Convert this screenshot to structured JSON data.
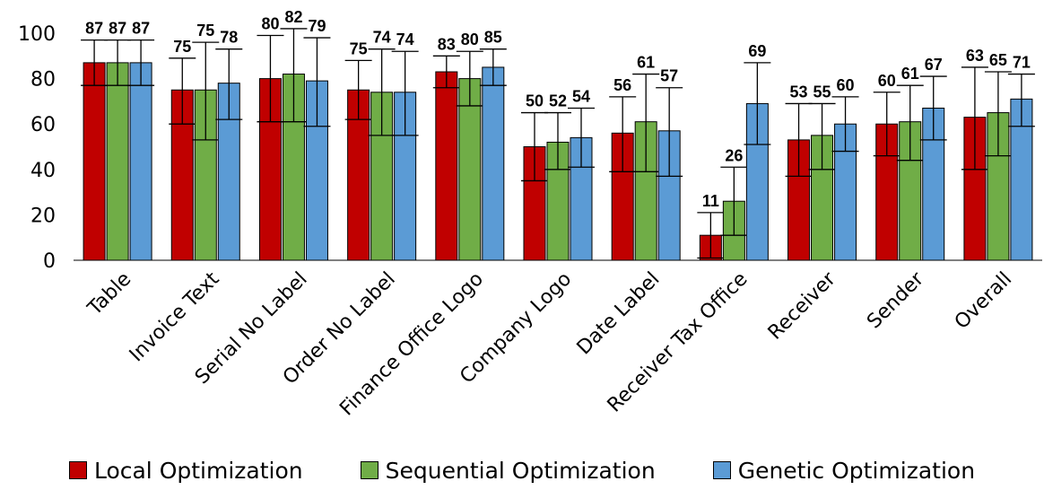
{
  "chart_data": {
    "type": "bar",
    "title": "",
    "xlabel": "",
    "ylabel": "",
    "ylim": [
      0,
      100
    ],
    "yticks": [
      0,
      20,
      40,
      60,
      80,
      100
    ],
    "grid": false,
    "error_bars": true,
    "legend_position": "bottom",
    "categories": [
      "Table",
      "Invoice Text",
      "Serial No Label",
      "Order No Label",
      "Finance Office Logo",
      "Company Logo",
      "Date Label",
      "Receiver Tax Office",
      "Receiver",
      "Sender",
      "Overall"
    ],
    "series": [
      {
        "name": "Local Optimization",
        "color": "#c00000",
        "values": [
          87,
          75,
          80,
          75,
          83,
          50,
          56,
          11,
          53,
          60,
          63
        ],
        "error_low": [
          77,
          60,
          61,
          62,
          76,
          35,
          39,
          1,
          37,
          46,
          40
        ],
        "error_high": [
          97,
          89,
          99,
          88,
          90,
          65,
          72,
          21,
          69,
          74,
          85
        ]
      },
      {
        "name": "Sequential Optimization",
        "color": "#70ad47",
        "values": [
          87,
          75,
          82,
          74,
          80,
          52,
          61,
          26,
          55,
          61,
          65
        ],
        "error_low": [
          77,
          53,
          61,
          55,
          68,
          40,
          39,
          11,
          40,
          44,
          46
        ],
        "error_high": [
          97,
          96,
          102,
          93,
          92,
          65,
          82,
          41,
          69,
          77,
          83
        ]
      },
      {
        "name": "Genetic Optimization",
        "color": "#5b9bd5",
        "values": [
          87,
          78,
          79,
          74,
          85,
          54,
          57,
          69,
          60,
          67,
          71
        ],
        "error_low": [
          77,
          62,
          59,
          55,
          77,
          41,
          37,
          51,
          48,
          53,
          59
        ],
        "error_high": [
          97,
          93,
          98,
          92,
          93,
          67,
          76,
          87,
          72,
          81,
          82
        ]
      }
    ]
  }
}
